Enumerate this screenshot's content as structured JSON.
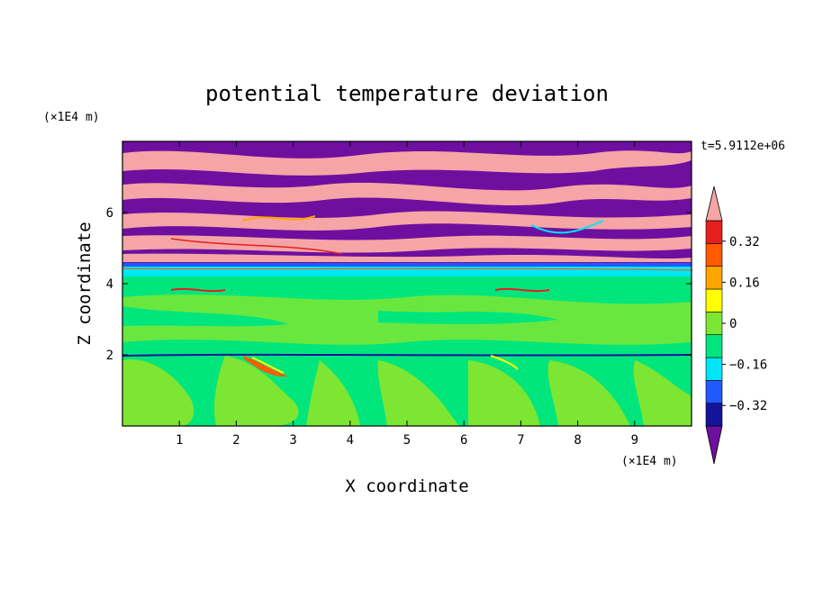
{
  "chart_data": {
    "type": "heatmap",
    "title": "potential temperature deviation",
    "xlabel": "X coordinate",
    "ylabel": "Z coordinate",
    "x_unit": "(×1E4 m)",
    "y_unit": "(×1E4 m)",
    "time_label": "t=5.9112e+06",
    "xlim": [
      0,
      10
    ],
    "ylim": [
      0,
      8
    ],
    "x_ticks": [
      "1",
      "2",
      "3",
      "4",
      "5",
      "6",
      "7",
      "8",
      "9"
    ],
    "y_ticks": [
      "2",
      "4",
      "6"
    ],
    "colorbar": {
      "levels": [
        -0.4,
        -0.32,
        -0.24,
        -0.16,
        -0.08,
        0,
        0.08,
        0.16,
        0.24,
        0.32,
        0.4
      ],
      "labels": [
        "0.32",
        "0.16",
        "0",
        "−0.16",
        "−0.32"
      ],
      "label_values": [
        0.32,
        0.16,
        0,
        -0.16,
        -0.32
      ],
      "colors": [
        "#6e0fa0",
        "#14149b",
        "#1e5aff",
        "#00e6f5",
        "#00e67d",
        "#7de632",
        "#ffff00",
        "#ffa500",
        "#ff5a00",
        "#e61e1e",
        "#f5a5a5"
      ],
      "extends": "both"
    },
    "regions": [
      {
        "z_range": [
          0,
          2
        ],
        "description": "alternating green and light-green plumes, values near 0 to 0.08"
      },
      {
        "z_range": [
          2,
          4.3
        ],
        "description": "mostly green/light-green layers with thin warm anomalies near z=2"
      },
      {
        "z_range": [
          4.3,
          4.5
        ],
        "description": "cyan/blue band, values near -0.16"
      },
      {
        "z_range": [
          4.5,
          8
        ],
        "description": "alternating purple (< -0.32) and pink (> 0.32) stripes"
      }
    ]
  }
}
